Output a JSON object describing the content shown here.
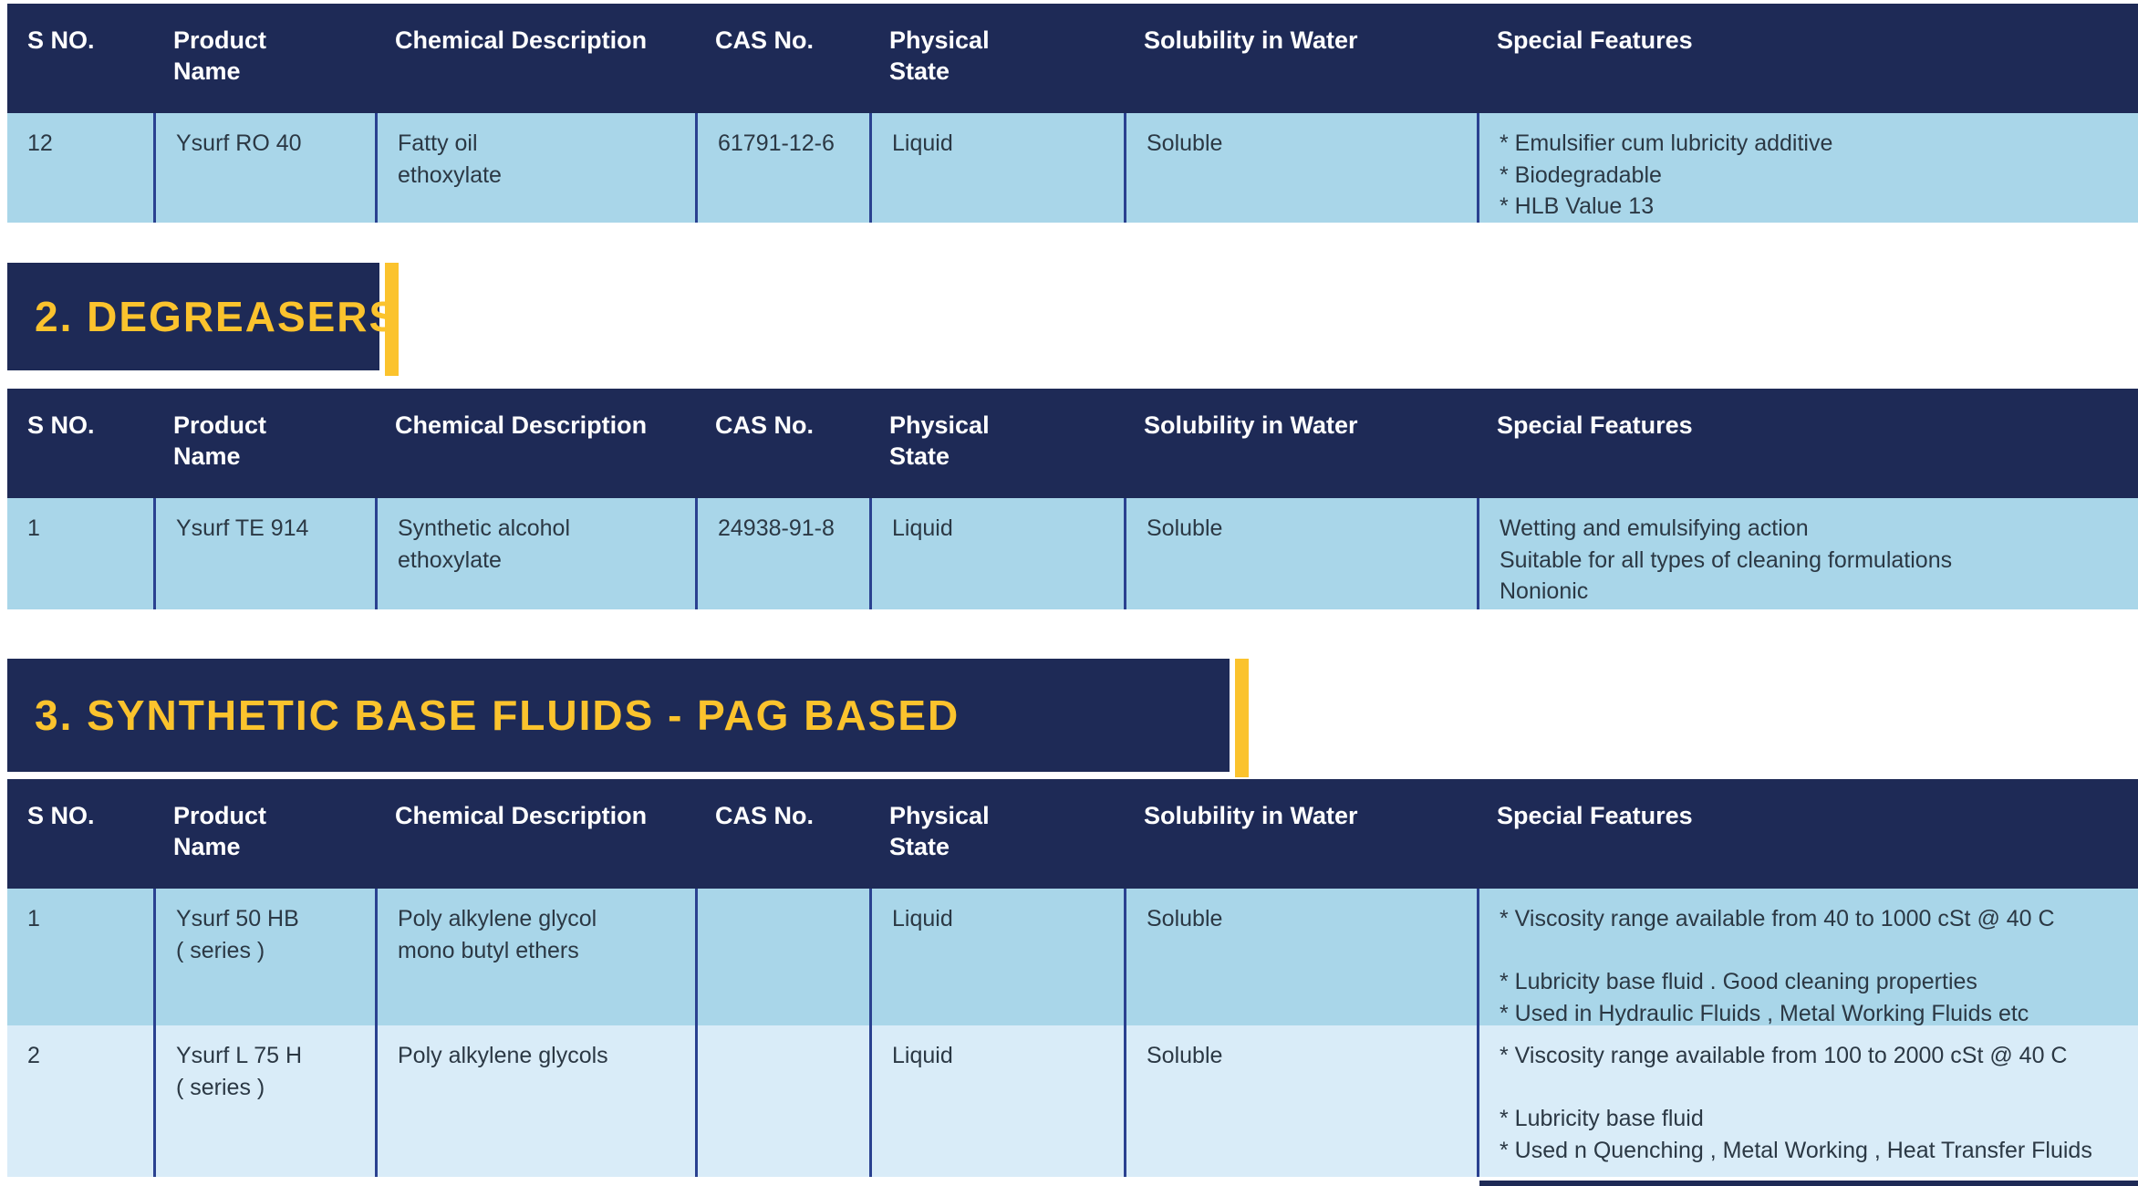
{
  "columns": [
    "S NO.",
    "Product\nName",
    "Chemical Description",
    "CAS No.",
    "Physical\nState",
    "Solubility in Water",
    "Special Features"
  ],
  "sections": [
    {
      "rows": [
        {
          "s_no": "12",
          "product": "Ysurf RO 40",
          "chemical": "Fatty oil\nethoxylate",
          "cas": "61791-12-6",
          "state": "Liquid",
          "solubility": "Soluble",
          "features": "* Emulsifier cum lubricity additive\n* Biodegradable\n* HLB Value 13"
        }
      ]
    },
    {
      "heading": "2. DEGREASERS",
      "rows": [
        {
          "s_no": "1",
          "product": "Ysurf TE 914",
          "chemical": "Synthetic alcohol\nethoxylate",
          "cas": "24938-91-8",
          "state": "Liquid",
          "solubility": "Soluble",
          "features": "Wetting and emulsifying action\nSuitable for all types of cleaning formulations\nNonionic"
        }
      ]
    },
    {
      "heading": "3. SYNTHETIC BASE FLUIDS - PAG BASED",
      "rows": [
        {
          "s_no": "1",
          "product": "Ysurf 50 HB\n( series )",
          "chemical": "Poly alkylene glycol\nmono butyl ethers",
          "cas": "",
          "state": "Liquid",
          "solubility": "Soluble",
          "features": "* Viscosity range available from 40 to 1000 cSt @ 40 C\n\n* Lubricity base fluid . Good cleaning properties\n* Used in Hydraulic Fluids , Metal Working Fluids etc"
        },
        {
          "s_no": "2",
          "product": "Ysurf L 75 H\n( series )",
          "chemical": "Poly alkylene glycols",
          "cas": "",
          "state": "Liquid",
          "solubility": "Soluble",
          "features": "* Viscosity range available from 100 to 2000 cSt @ 40 C\n\n* Lubricity base fluid\n* Used n Quenching , Metal Working , Heat Transfer Fluids"
        }
      ]
    }
  ],
  "colors": {
    "header_navy": "#1e2a56",
    "accent_yellow": "#fbc32d",
    "row_blue": "#a9d6e9",
    "row_blue_light": "#d9ecf8",
    "divider_blue": "#2a4190",
    "body_text": "#2b3844",
    "header_text": "#ffffff"
  }
}
